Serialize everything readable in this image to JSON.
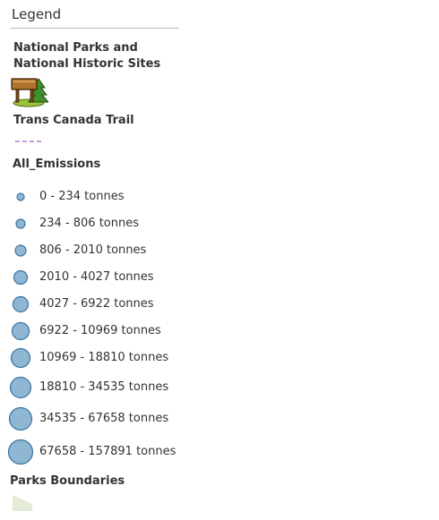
{
  "legend": {
    "title": "Legend",
    "layers": {
      "parks": {
        "title": "National Parks and National Historic Sites",
        "icon": "park-sign-tree-icon"
      },
      "trail": {
        "title": "Trans Canada Trail",
        "line_color": "#b07cc6"
      },
      "emissions": {
        "title": "All_Emissions",
        "symbol_fill": "#8fb6d2",
        "symbol_stroke": "#3a74a4",
        "classes": [
          {
            "label": "0 - 234 tonnes"
          },
          {
            "label": "234 - 806 tonnes"
          },
          {
            "label": "806 - 2010 tonnes"
          },
          {
            "label": "2010 - 4027 tonnes"
          },
          {
            "label": "4027 - 6922 tonnes"
          },
          {
            "label": "6922 - 10969 tonnes"
          },
          {
            "label": "10969 - 18810 tonnes"
          },
          {
            "label": "18810 - 34535 tonnes"
          },
          {
            "label": "34535 - 67658 tonnes"
          },
          {
            "label": "67658 - 157891 tonnes"
          }
        ]
      },
      "boundaries": {
        "title": "Parks Boundaries",
        "fill_color": "#e4ecd8"
      }
    }
  }
}
